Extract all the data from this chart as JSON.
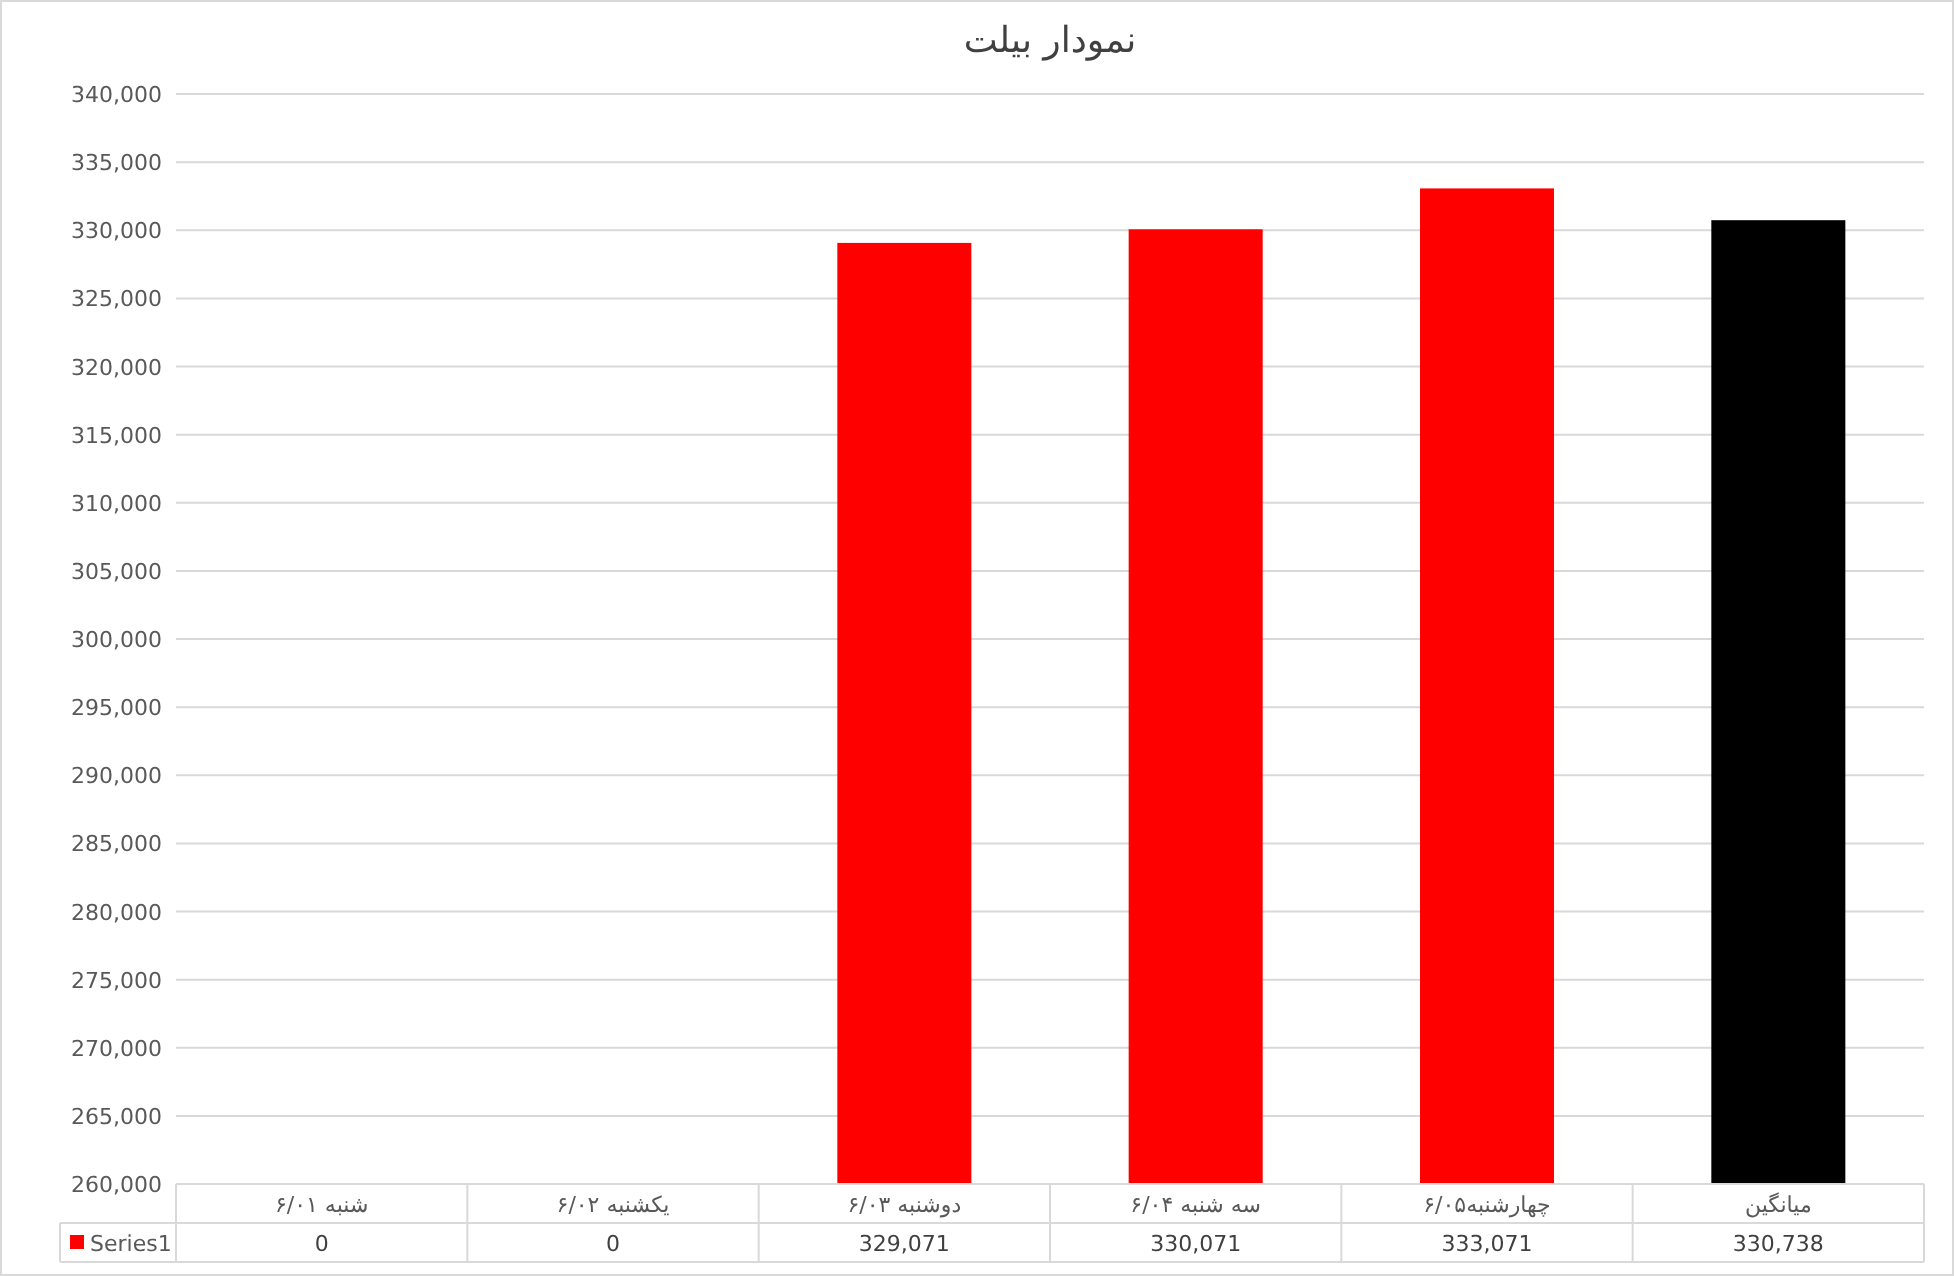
{
  "chart_data": {
    "type": "bar",
    "title": "نمودار بیلت",
    "categories": [
      "شنبه ۶/۰۱",
      "یکشنبه ۶/۰۲",
      "دوشنبه ۶/۰۳",
      "سه شنبه ۶/۰۴",
      "چهارشنبه۶/۰۵",
      "میانگین"
    ],
    "series": [
      {
        "name": "Series1",
        "color": "#ff0000",
        "colors": [
          null,
          null,
          "#ff0000",
          "#ff0000",
          "#ff0000",
          "#000000"
        ],
        "values": [
          null,
          null,
          329071,
          330071,
          333071,
          330738
        ],
        "value_labels": [
          "0",
          "0",
          "329,071",
          "330,071",
          "333,071",
          "330,738"
        ]
      }
    ],
    "ylim": [
      260000,
      340000
    ],
    "yticks": [
      {
        "value": 260000,
        "label": "260,000"
      },
      {
        "value": 265000,
        "label": "265,000"
      },
      {
        "value": 270000,
        "label": "270,000"
      },
      {
        "value": 275000,
        "label": "275,000"
      },
      {
        "value": 280000,
        "label": "280,000"
      },
      {
        "value": 285000,
        "label": "285,000"
      },
      {
        "value": 290000,
        "label": "290,000"
      },
      {
        "value": 295000,
        "label": "295,000"
      },
      {
        "value": 300000,
        "label": "300,000"
      },
      {
        "value": 305000,
        "label": "305,000"
      },
      {
        "value": 310000,
        "label": "310,000"
      },
      {
        "value": 315000,
        "label": "315,000"
      },
      {
        "value": 320000,
        "label": "320,000"
      },
      {
        "value": 325000,
        "label": "325,000"
      },
      {
        "value": 330000,
        "label": "330,000"
      },
      {
        "value": 335000,
        "label": "335,000"
      },
      {
        "value": 340000,
        "label": "340,000"
      }
    ],
    "grid": "y",
    "legend": "bottom"
  }
}
